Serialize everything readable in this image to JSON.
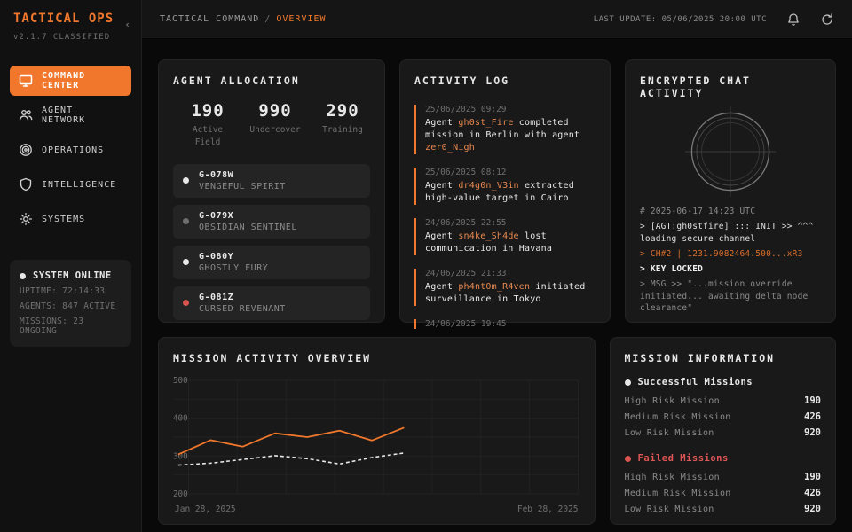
{
  "colors": {
    "accent": "#f0772b",
    "accent_soft": "#e8884e",
    "danger": "#e05555",
    "dot_active": "#e8e8e8",
    "dot_idle": "#6f6f6f",
    "dot_alert": "#d9534f"
  },
  "app": {
    "title": "TACTICAL OPS",
    "version": "v2.1.7 CLASSIFIED",
    "collapse_icon": "chevron-left-icon"
  },
  "sidebar": {
    "items": [
      {
        "label": "COMMAND CENTER",
        "icon": "monitor-icon",
        "active": true
      },
      {
        "label": "AGENT NETWORK",
        "icon": "users-icon",
        "active": false
      },
      {
        "label": "OPERATIONS",
        "icon": "target-icon",
        "active": false
      },
      {
        "label": "INTELLIGENCE",
        "icon": "shield-icon",
        "active": false
      },
      {
        "label": "SYSTEMS",
        "icon": "gear-icon",
        "active": false
      }
    ],
    "status": {
      "title": "SYSTEM ONLINE",
      "lines": [
        "UPTIME: 72:14:33",
        "AGENTS: 847 ACTIVE",
        "MISSIONS: 23 ONGOING"
      ]
    }
  },
  "topbar": {
    "breadcrumb_root": "TACTICAL COMMAND",
    "breadcrumb_sep": "/",
    "breadcrumb_current": "OVERVIEW",
    "last_update": "LAST UPDATE: 05/06/2025 20:00 UTC",
    "icons": [
      "bell-icon",
      "refresh-icon"
    ]
  },
  "agent_allocation": {
    "title": "AGENT ALLOCATION",
    "stats": [
      {
        "value": "190",
        "label": "Active Field"
      },
      {
        "value": "990",
        "label": "Undercover"
      },
      {
        "value": "290",
        "label": "Training"
      }
    ],
    "agents": [
      {
        "id": "G-078W",
        "name": "VENGEFUL SPIRIT",
        "status_color": "#e8e8e8"
      },
      {
        "id": "G-079X",
        "name": "OBSIDIAN SENTINEL",
        "status_color": "#6f6f6f"
      },
      {
        "id": "G-080Y",
        "name": "GHOSTLY FURY",
        "status_color": "#e8e8e8"
      },
      {
        "id": "G-081Z",
        "name": "CURSED REVENANT",
        "status_color": "#d9534f"
      }
    ]
  },
  "activity_log": {
    "title": "ACTIVITY LOG",
    "entries": [
      {
        "time": "25/06/2025 09:29",
        "segments": [
          {
            "text": "Agent ",
            "accent": false
          },
          {
            "text": "gh0st_Fire",
            "accent": true
          },
          {
            "text": " completed mission in Berlin with agent ",
            "accent": false
          },
          {
            "text": "zer0_Nigh",
            "accent": true
          }
        ]
      },
      {
        "time": "25/06/2025 08:12",
        "segments": [
          {
            "text": "Agent ",
            "accent": false
          },
          {
            "text": "dr4g0n_V3in",
            "accent": true
          },
          {
            "text": " extracted high-value target in Cairo",
            "accent": false
          }
        ]
      },
      {
        "time": "24/06/2025 22:55",
        "segments": [
          {
            "text": "Agent ",
            "accent": false
          },
          {
            "text": "sn4ke_Sh4de",
            "accent": true
          },
          {
            "text": " lost communication in Havana",
            "accent": false
          }
        ]
      },
      {
        "time": "24/06/2025 21:33",
        "segments": [
          {
            "text": "Agent ",
            "accent": false
          },
          {
            "text": "ph4nt0m_R4ven",
            "accent": true
          },
          {
            "text": " initiated surveillance in Tokyo",
            "accent": false
          }
        ]
      },
      {
        "time": "24/06/2025 19:45",
        "segments": []
      }
    ]
  },
  "chat": {
    "title": "ENCRYPTED CHAT ACTIVITY",
    "radar_icon": "radar-crosshair-icon",
    "lines": [
      {
        "text": "# 2025-06-17 14:23 UTC",
        "style": "dim"
      },
      {
        "text": "> [AGT:gh0stfire] ::: INIT >> ^^^ loading secure channel",
        "style": "normal"
      },
      {
        "text": "> CH#2 | 1231.9082464.500...xR3",
        "style": "accent"
      },
      {
        "text": "> KEY LOCKED",
        "style": "bold"
      },
      {
        "text": "> MSG >> \"...mission override initiated... awaiting delta node clearance\"",
        "style": "dim"
      }
    ]
  },
  "chart_data": {
    "type": "line",
    "title": "MISSION ACTIVITY OVERVIEW",
    "x_start_label": "Jan 28, 2025",
    "x_end_label": "Feb 28, 2025",
    "ylim": [
      200,
      500
    ],
    "yticks": [
      500,
      400,
      300,
      200
    ],
    "grid": true,
    "legend_position": "none",
    "series": [
      {
        "name": "primary-missions",
        "style": "solid",
        "color": "#f0772b",
        "values": [
          304,
          342,
          325,
          360,
          350,
          367,
          341,
          375
        ]
      },
      {
        "name": "secondary-missions",
        "style": "dashed",
        "color": "#e8e8e8",
        "values": [
          276,
          281,
          291,
          301,
          293,
          279,
          296,
          308
        ]
      }
    ]
  },
  "mission_info": {
    "title": "MISSION INFORMATION",
    "groups": [
      {
        "label": "Successful Missions",
        "color": "#e8e8e8",
        "label_color": "#e8e8e8",
        "rows": [
          {
            "label": "High Risk Mission",
            "value": "190"
          },
          {
            "label": "Medium Risk Mission",
            "value": "426"
          },
          {
            "label": "Low Risk Mission",
            "value": "920"
          }
        ]
      },
      {
        "label": "Failed Missions",
        "color": "#d9534f",
        "label_color": "#e05555",
        "rows": [
          {
            "label": "High Risk Mission",
            "value": "190"
          },
          {
            "label": "Medium Risk Mission",
            "value": "426"
          },
          {
            "label": "Low Risk Mission",
            "value": "920"
          }
        ]
      }
    ]
  }
}
